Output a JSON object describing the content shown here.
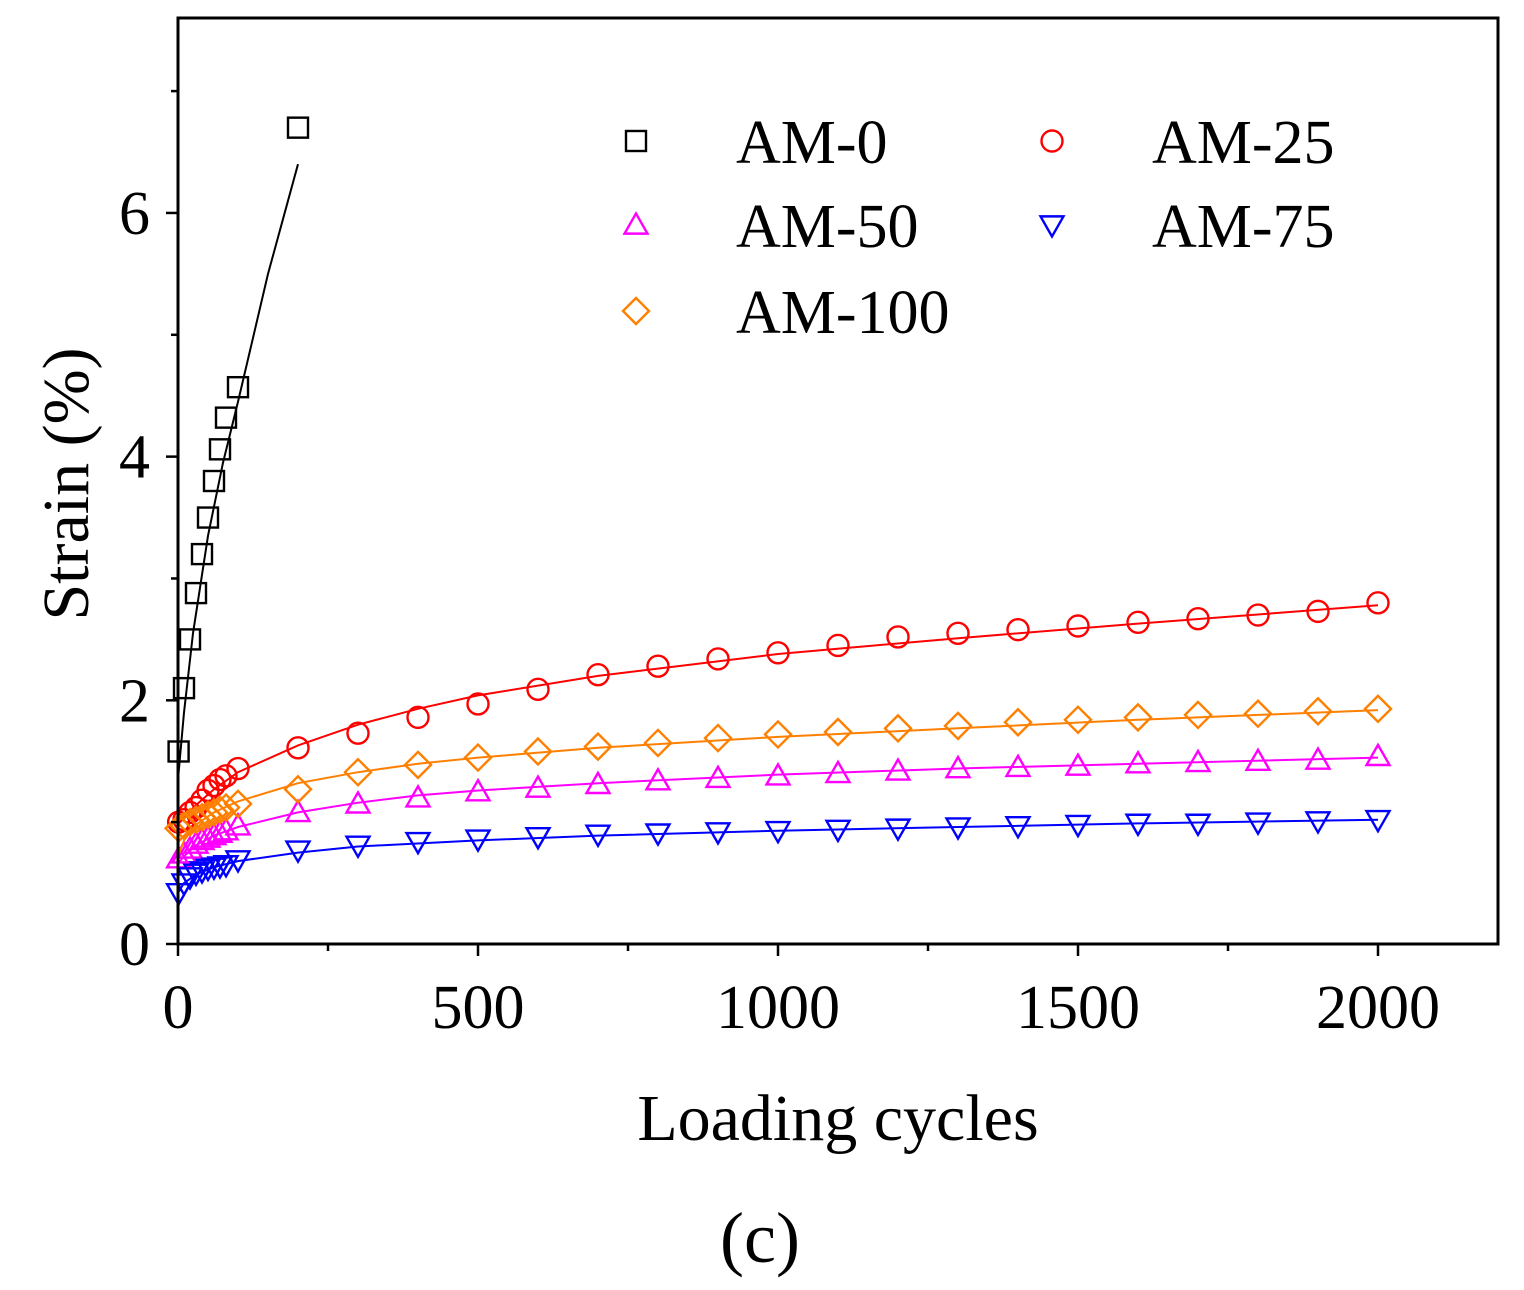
{
  "chart_data": {
    "type": "scatter",
    "title": "",
    "panel_label": "(c)",
    "xlabel": "Loading cycles",
    "ylabel": "Strain (%)",
    "xlim": [
      0,
      2200
    ],
    "ylim": [
      0,
      7.6
    ],
    "x_ticks": [
      0,
      500,
      1000,
      1500,
      2000
    ],
    "y_ticks": [
      0,
      2,
      4,
      6
    ],
    "grid": false,
    "legend_position": "top-right",
    "series": [
      {
        "name": "AM-0",
        "color": "#000000",
        "marker": "square",
        "x": [
          1,
          10,
          20,
          30,
          40,
          50,
          60,
          70,
          80,
          100,
          200
        ],
        "y": [
          1.58,
          2.1,
          2.5,
          2.88,
          3.2,
          3.5,
          3.8,
          4.06,
          4.32,
          4.57,
          6.7
        ],
        "fit": [
          [
            0,
            1.35
          ],
          [
            10,
            1.9
          ],
          [
            25,
            2.55
          ],
          [
            50,
            3.35
          ],
          [
            75,
            3.95
          ],
          [
            100,
            4.45
          ],
          [
            150,
            5.5
          ],
          [
            200,
            6.4
          ]
        ]
      },
      {
        "name": "AM-25",
        "color": "#ff0000",
        "marker": "circle",
        "x": [
          1,
          10,
          20,
          30,
          40,
          50,
          60,
          70,
          80,
          100,
          200,
          300,
          400,
          500,
          600,
          700,
          800,
          900,
          1000,
          1100,
          1200,
          1300,
          1400,
          1500,
          1600,
          1700,
          1800,
          1900,
          2000
        ],
        "y": [
          1.0,
          1.02,
          1.08,
          1.12,
          1.18,
          1.26,
          1.3,
          1.35,
          1.38,
          1.44,
          1.61,
          1.73,
          1.86,
          1.97,
          2.09,
          2.21,
          2.28,
          2.34,
          2.39,
          2.45,
          2.52,
          2.55,
          2.58,
          2.61,
          2.64,
          2.67,
          2.7,
          2.73,
          2.8
        ],
        "fit": [
          [
            0,
            0.98
          ],
          [
            10,
            1.04
          ],
          [
            30,
            1.14
          ],
          [
            60,
            1.27
          ],
          [
            100,
            1.41
          ],
          [
            200,
            1.63
          ],
          [
            300,
            1.8
          ],
          [
            400,
            1.93
          ],
          [
            500,
            2.04
          ],
          [
            700,
            2.2
          ],
          [
            1000,
            2.38
          ],
          [
            1300,
            2.51
          ],
          [
            1600,
            2.63
          ],
          [
            2000,
            2.78
          ]
        ]
      },
      {
        "name": "AM-50",
        "color": "#ff00ff",
        "marker": "triangle-up",
        "x": [
          1,
          10,
          20,
          30,
          40,
          50,
          60,
          70,
          80,
          100,
          200,
          300,
          400,
          500,
          600,
          700,
          800,
          900,
          1000,
          1100,
          1200,
          1300,
          1400,
          1500,
          1600,
          1700,
          1800,
          1900,
          2000
        ],
        "y": [
          0.7,
          0.74,
          0.78,
          0.82,
          0.85,
          0.87,
          0.89,
          0.91,
          0.93,
          0.97,
          1.08,
          1.15,
          1.2,
          1.25,
          1.28,
          1.31,
          1.34,
          1.36,
          1.38,
          1.4,
          1.42,
          1.44,
          1.45,
          1.46,
          1.48,
          1.49,
          1.5,
          1.51,
          1.54
        ],
        "fit": [
          [
            0,
            0.66
          ],
          [
            10,
            0.72
          ],
          [
            30,
            0.81
          ],
          [
            60,
            0.89
          ],
          [
            100,
            0.96
          ],
          [
            200,
            1.08
          ],
          [
            300,
            1.16
          ],
          [
            400,
            1.22
          ],
          [
            500,
            1.26
          ],
          [
            700,
            1.32
          ],
          [
            1000,
            1.39
          ],
          [
            1300,
            1.44
          ],
          [
            1600,
            1.48
          ],
          [
            2000,
            1.53
          ]
        ]
      },
      {
        "name": "AM-75",
        "color": "#0000ff",
        "marker": "triangle-down",
        "x": [
          1,
          10,
          20,
          30,
          40,
          50,
          60,
          70,
          80,
          100,
          200,
          300,
          400,
          500,
          600,
          700,
          800,
          900,
          1000,
          1100,
          1200,
          1300,
          1400,
          1500,
          1600,
          1700,
          1800,
          1900,
          2000
        ],
        "y": [
          0.42,
          0.5,
          0.55,
          0.58,
          0.6,
          0.62,
          0.63,
          0.64,
          0.65,
          0.69,
          0.77,
          0.81,
          0.84,
          0.86,
          0.88,
          0.9,
          0.91,
          0.92,
          0.93,
          0.94,
          0.95,
          0.96,
          0.97,
          0.98,
          0.99,
          0.99,
          1.0,
          1.01,
          1.02
        ],
        "fit": [
          [
            0,
            0.42
          ],
          [
            10,
            0.5
          ],
          [
            30,
            0.57
          ],
          [
            60,
            0.63
          ],
          [
            100,
            0.68
          ],
          [
            200,
            0.75
          ],
          [
            300,
            0.8
          ],
          [
            500,
            0.85
          ],
          [
            700,
            0.89
          ],
          [
            1000,
            0.93
          ],
          [
            1300,
            0.96
          ],
          [
            1600,
            0.99
          ],
          [
            2000,
            1.02
          ]
        ]
      },
      {
        "name": "AM-100",
        "color": "#ff8000",
        "marker": "diamond",
        "x": [
          1,
          10,
          20,
          30,
          40,
          50,
          60,
          70,
          80,
          100,
          200,
          300,
          400,
          500,
          600,
          700,
          800,
          900,
          1000,
          1100,
          1200,
          1300,
          1400,
          1500,
          1600,
          1700,
          1800,
          1900,
          2000
        ],
        "y": [
          0.95,
          0.97,
          1.0,
          1.02,
          1.04,
          1.06,
          1.08,
          1.1,
          1.12,
          1.15,
          1.27,
          1.41,
          1.47,
          1.53,
          1.58,
          1.62,
          1.65,
          1.69,
          1.72,
          1.74,
          1.77,
          1.79,
          1.82,
          1.84,
          1.86,
          1.88,
          1.89,
          1.91,
          1.93
        ],
        "fit": [
          [
            0,
            0.72
          ],
          [
            10,
            0.85
          ],
          [
            30,
            0.98
          ],
          [
            60,
            1.08
          ],
          [
            100,
            1.17
          ],
          [
            200,
            1.32
          ],
          [
            300,
            1.41
          ],
          [
            400,
            1.48
          ],
          [
            500,
            1.53
          ],
          [
            700,
            1.61
          ],
          [
            1000,
            1.7
          ],
          [
            1300,
            1.77
          ],
          [
            1600,
            1.84
          ],
          [
            2000,
            1.92
          ]
        ]
      }
    ]
  }
}
